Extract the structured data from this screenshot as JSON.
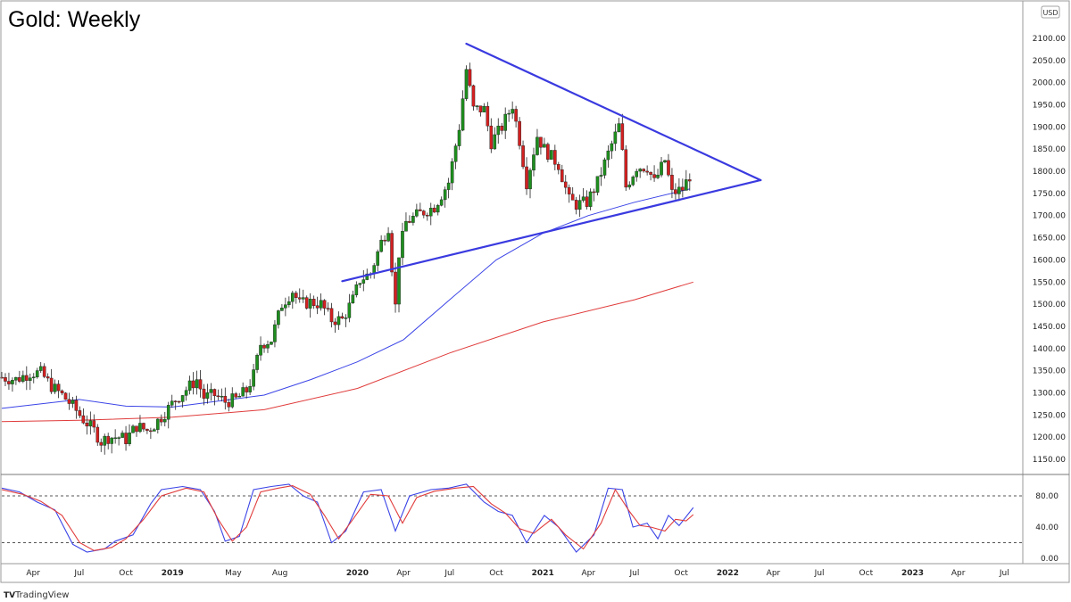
{
  "title": "Gold: Weekly",
  "currency_badge": "USD",
  "brand": {
    "logo_text": "TV",
    "label": "TradingView"
  },
  "colors": {
    "bull": "#1e8f1e",
    "bear": "#d32020",
    "wick": "#222222",
    "ma_fast": "#3b44e6",
    "ma_slow": "#e03b3b",
    "trendline": "#3a3ae0",
    "stoch_k": "#3b44e6",
    "stoch_d": "#e03b3b",
    "guide": "#555555",
    "border": "#9a9a9a"
  },
  "chart_data": [
    {
      "type": "candlestick",
      "title": "Gold: Weekly",
      "timeframe": "weekly",
      "x_range": [
        "2018-01-29",
        "2023-10-23"
      ],
      "ylim": [
        1130,
        2140
      ],
      "y_ticks": [
        1150,
        1200,
        1250,
        1300,
        1350,
        1400,
        1450,
        1500,
        1550,
        1600,
        1650,
        1700,
        1750,
        1800,
        1850,
        1900,
        1950,
        2000,
        2050,
        2100
      ],
      "y_tick_labels": [
        "1150.00",
        "1200.00",
        "1250.00",
        "1300.00",
        "1350.00",
        "1400.00",
        "1450.00",
        "1500.00",
        "1550.00",
        "1600.00",
        "1650.00",
        "1700.00",
        "1750.00",
        "1800.00",
        "1850.00",
        "1900.00",
        "1950.00",
        "2000.00",
        "2050.00",
        "2100.00"
      ],
      "x_ticks": [
        {
          "date": "2018-04-01",
          "label": "Apr",
          "bold": false
        },
        {
          "date": "2018-07-01",
          "label": "Jul",
          "bold": false
        },
        {
          "date": "2018-10-01",
          "label": "Oct",
          "bold": false
        },
        {
          "date": "2019-01-01",
          "label": "2019",
          "bold": true
        },
        {
          "date": "2019-05-01",
          "label": "May",
          "bold": false
        },
        {
          "date": "2019-08-01",
          "label": "Aug",
          "bold": false
        },
        {
          "date": "2020-01-01",
          "label": "2020",
          "bold": true
        },
        {
          "date": "2020-04-01",
          "label": "Apr",
          "bold": false
        },
        {
          "date": "2020-07-01",
          "label": "Jul",
          "bold": false
        },
        {
          "date": "2020-10-01",
          "label": "Oct",
          "bold": false
        },
        {
          "date": "2021-01-01",
          "label": "2021",
          "bold": true
        },
        {
          "date": "2021-04-01",
          "label": "Apr",
          "bold": false
        },
        {
          "date": "2021-07-01",
          "label": "Jul",
          "bold": false
        },
        {
          "date": "2021-10-01",
          "label": "Oct",
          "bold": false
        },
        {
          "date": "2022-01-01",
          "label": "2022",
          "bold": true
        },
        {
          "date": "2022-04-01",
          "label": "Apr",
          "bold": false
        },
        {
          "date": "2022-07-01",
          "label": "Jul",
          "bold": false
        },
        {
          "date": "2022-10-01",
          "label": "Oct",
          "bold": false
        },
        {
          "date": "2023-01-01",
          "label": "2023",
          "bold": true
        },
        {
          "date": "2023-04-01",
          "label": "Apr",
          "bold": false
        },
        {
          "date": "2023-07-01",
          "label": "Jul",
          "bold": false
        }
      ],
      "close_path": [
        [
          "2018-01-29",
          1335
        ],
        [
          "2018-02-26",
          1330
        ],
        [
          "2018-03-26",
          1345
        ],
        [
          "2018-04-16",
          1345
        ],
        [
          "2018-05-07",
          1315
        ],
        [
          "2018-05-28",
          1295
        ],
        [
          "2018-06-18",
          1270
        ],
        [
          "2018-07-09",
          1240
        ],
        [
          "2018-07-30",
          1215
        ],
        [
          "2018-08-13",
          1190
        ],
        [
          "2018-08-27",
          1200
        ],
        [
          "2018-09-17",
          1200
        ],
        [
          "2018-10-01",
          1195
        ],
        [
          "2018-10-22",
          1225
        ],
        [
          "2018-11-12",
          1215
        ],
        [
          "2018-11-26",
          1228
        ],
        [
          "2018-12-17",
          1255
        ],
        [
          "2019-01-07",
          1285
        ],
        [
          "2019-02-04",
          1315
        ],
        [
          "2019-02-18",
          1330
        ],
        [
          "2019-03-04",
          1290
        ],
        [
          "2019-03-25",
          1295
        ],
        [
          "2019-04-15",
          1280
        ],
        [
          "2019-05-06",
          1285
        ],
        [
          "2019-05-27",
          1305
        ],
        [
          "2019-06-10",
          1340
        ],
        [
          "2019-06-24",
          1410
        ],
        [
          "2019-07-15",
          1420
        ],
        [
          "2019-08-05",
          1500
        ],
        [
          "2019-08-26",
          1530
        ],
        [
          "2019-09-09",
          1500
        ],
        [
          "2019-09-30",
          1505
        ],
        [
          "2019-10-21",
          1500
        ],
        [
          "2019-11-11",
          1465
        ],
        [
          "2019-12-02",
          1465
        ],
        [
          "2019-12-23",
          1510
        ],
        [
          "2020-01-06",
          1555
        ],
        [
          "2020-01-27",
          1570
        ],
        [
          "2020-02-17",
          1640
        ],
        [
          "2020-03-02",
          1675
        ],
        [
          "2020-03-16",
          1495
        ],
        [
          "2020-03-23",
          1615
        ],
        [
          "2020-04-06",
          1685
        ],
        [
          "2020-05-04",
          1705
        ],
        [
          "2020-06-01",
          1720
        ],
        [
          "2020-06-29",
          1775
        ],
        [
          "2020-07-20",
          1900
        ],
        [
          "2020-08-03",
          2030
        ],
        [
          "2020-08-17",
          1940
        ],
        [
          "2020-09-07",
          1940
        ],
        [
          "2020-09-21",
          1865
        ],
        [
          "2020-10-12",
          1900
        ],
        [
          "2020-11-02",
          1950
        ],
        [
          "2020-11-16",
          1870
        ],
        [
          "2020-11-30",
          1775
        ],
        [
          "2020-12-21",
          1880
        ],
        [
          "2021-01-04",
          1850
        ],
        [
          "2021-02-01",
          1815
        ],
        [
          "2021-02-22",
          1735
        ],
        [
          "2021-03-08",
          1725
        ],
        [
          "2021-03-29",
          1730
        ],
        [
          "2021-04-19",
          1775
        ],
        [
          "2021-05-10",
          1840
        ],
        [
          "2021-06-01",
          1905
        ],
        [
          "2021-06-14",
          1765
        ],
        [
          "2021-07-05",
          1810
        ],
        [
          "2021-07-26",
          1810
        ],
        [
          "2021-08-09",
          1775
        ],
        [
          "2021-08-30",
          1825
        ],
        [
          "2021-09-13",
          1750
        ],
        [
          "2021-10-04",
          1760
        ],
        [
          "2021-10-18",
          1790
        ]
      ],
      "moving_averages": [
        {
          "color_key": "ma_fast",
          "values": [
            [
              "2018-01-29",
              1265
            ],
            [
              "2018-07-01",
              1285
            ],
            [
              "2018-10-01",
              1270
            ],
            [
              "2019-01-01",
              1268
            ],
            [
              "2019-07-01",
              1295
            ],
            [
              "2019-10-01",
              1330
            ],
            [
              "2020-01-01",
              1370
            ],
            [
              "2020-04-01",
              1420
            ],
            [
              "2020-07-01",
              1510
            ],
            [
              "2020-10-01",
              1600
            ],
            [
              "2021-01-01",
              1660
            ],
            [
              "2021-04-01",
              1700
            ],
            [
              "2021-07-01",
              1730
            ],
            [
              "2021-10-18",
              1760
            ]
          ]
        },
        {
          "color_key": "ma_slow",
          "values": [
            [
              "2018-01-29",
              1235
            ],
            [
              "2018-07-01",
              1238
            ],
            [
              "2019-01-01",
              1245
            ],
            [
              "2019-07-01",
              1262
            ],
            [
              "2020-01-01",
              1310
            ],
            [
              "2020-07-01",
              1390
            ],
            [
              "2021-01-01",
              1460
            ],
            [
              "2021-07-01",
              1510
            ],
            [
              "2021-10-25",
              1550
            ]
          ]
        }
      ],
      "trendlines": [
        {
          "role": "resistance",
          "from": [
            "2020-08-03",
            2088
          ],
          "to": [
            "2022-03-07",
            1780
          ]
        },
        {
          "role": "support",
          "from": [
            "2019-12-02",
            1552
          ],
          "to": [
            "2022-03-07",
            1780
          ]
        }
      ]
    },
    {
      "type": "line",
      "indicator": "stochastic",
      "ylim": [
        -5,
        100
      ],
      "y_ticks": [
        0,
        40,
        80
      ],
      "y_tick_labels": [
        "0.00",
        "40.00",
        "80.00"
      ],
      "guides": [
        20,
        80
      ],
      "series": [
        {
          "color_key": "stoch_k",
          "values": [
            [
              "2018-01-29",
              90
            ],
            [
              "2018-03-05",
              85
            ],
            [
              "2018-04-09",
              72
            ],
            [
              "2018-05-14",
              62
            ],
            [
              "2018-06-18",
              18
            ],
            [
              "2018-07-16",
              8
            ],
            [
              "2018-08-20",
              12
            ],
            [
              "2018-09-10",
              22
            ],
            [
              "2018-10-15",
              30
            ],
            [
              "2018-11-19",
              70
            ],
            [
              "2018-12-10",
              88
            ],
            [
              "2019-01-21",
              92
            ],
            [
              "2019-02-25",
              88
            ],
            [
              "2019-03-25",
              60
            ],
            [
              "2019-04-15",
              22
            ],
            [
              "2019-05-13",
              28
            ],
            [
              "2019-06-10",
              88
            ],
            [
              "2019-07-15",
              92
            ],
            [
              "2019-08-19",
              95
            ],
            [
              "2019-09-16",
              80
            ],
            [
              "2019-10-14",
              72
            ],
            [
              "2019-11-11",
              20
            ],
            [
              "2019-12-09",
              35
            ],
            [
              "2020-01-13",
              85
            ],
            [
              "2020-02-17",
              88
            ],
            [
              "2020-03-16",
              35
            ],
            [
              "2020-04-13",
              80
            ],
            [
              "2020-05-25",
              88
            ],
            [
              "2020-06-29",
              90
            ],
            [
              "2020-08-03",
              95
            ],
            [
              "2020-09-07",
              72
            ],
            [
              "2020-10-05",
              60
            ],
            [
              "2020-11-02",
              55
            ],
            [
              "2020-11-30",
              20
            ],
            [
              "2021-01-04",
              55
            ],
            [
              "2021-02-01",
              40
            ],
            [
              "2021-03-08",
              8
            ],
            [
              "2021-04-12",
              30
            ],
            [
              "2021-05-10",
              90
            ],
            [
              "2021-06-07",
              88
            ],
            [
              "2021-06-28",
              40
            ],
            [
              "2021-07-26",
              45
            ],
            [
              "2021-08-16",
              25
            ],
            [
              "2021-09-06",
              55
            ],
            [
              "2021-09-27",
              42
            ],
            [
              "2021-10-25",
              65
            ]
          ]
        },
        {
          "color_key": "stoch_d",
          "values": [
            [
              "2018-01-29",
              88
            ],
            [
              "2018-03-12",
              82
            ],
            [
              "2018-04-16",
              73
            ],
            [
              "2018-05-28",
              55
            ],
            [
              "2018-07-02",
              20
            ],
            [
              "2018-07-30",
              10
            ],
            [
              "2018-09-03",
              14
            ],
            [
              "2018-10-01",
              25
            ],
            [
              "2018-11-05",
              50
            ],
            [
              "2018-12-10",
              80
            ],
            [
              "2019-01-28",
              90
            ],
            [
              "2019-03-04",
              85
            ],
            [
              "2019-04-01",
              50
            ],
            [
              "2019-04-29",
              22
            ],
            [
              "2019-05-27",
              40
            ],
            [
              "2019-06-24",
              85
            ],
            [
              "2019-07-29",
              90
            ],
            [
              "2019-08-26",
              93
            ],
            [
              "2019-09-30",
              82
            ],
            [
              "2019-10-28",
              55
            ],
            [
              "2019-11-25",
              25
            ],
            [
              "2019-12-23",
              50
            ],
            [
              "2020-01-27",
              82
            ],
            [
              "2020-03-02",
              80
            ],
            [
              "2020-03-30",
              45
            ],
            [
              "2020-04-27",
              78
            ],
            [
              "2020-06-01",
              86
            ],
            [
              "2020-07-13",
              90
            ],
            [
              "2020-08-17",
              92
            ],
            [
              "2020-09-21",
              70
            ],
            [
              "2020-10-19",
              58
            ],
            [
              "2020-11-16",
              38
            ],
            [
              "2020-12-14",
              32
            ],
            [
              "2021-01-18",
              50
            ],
            [
              "2021-02-15",
              30
            ],
            [
              "2021-03-22",
              12
            ],
            [
              "2021-04-26",
              45
            ],
            [
              "2021-05-24",
              88
            ],
            [
              "2021-06-21",
              60
            ],
            [
              "2021-07-12",
              42
            ],
            [
              "2021-08-02",
              40
            ],
            [
              "2021-08-30",
              35
            ],
            [
              "2021-09-20",
              50
            ],
            [
              "2021-10-11",
              48
            ],
            [
              "2021-10-25",
              56
            ]
          ]
        }
      ]
    }
  ]
}
